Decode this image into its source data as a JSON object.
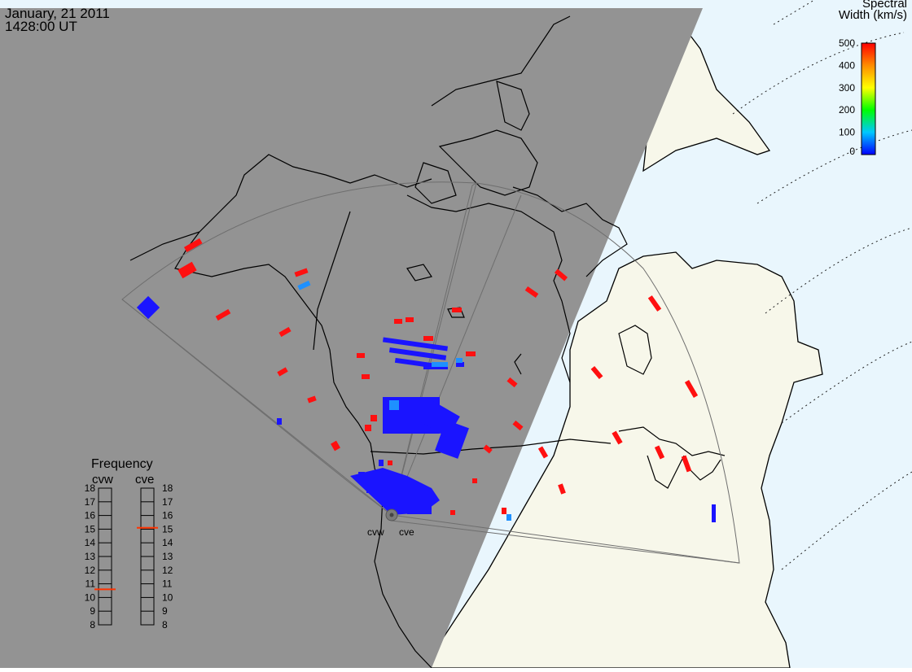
{
  "date": "January, 21 2011",
  "time": "1428:00 UT",
  "colorbar": {
    "title_line1": "Spectral",
    "title_line2": "Width (km/s)",
    "ticks": [
      0,
      100,
      200,
      300,
      400,
      500
    ],
    "stops": [
      "#0000ff",
      "#00c8ff",
      "#00ff00",
      "#ffff00",
      "#ff8c00",
      "#ff0000"
    ]
  },
  "radars": {
    "west": "cvw",
    "east": "cve"
  },
  "frequency": {
    "title": "Frequency",
    "west_label": "cvw",
    "east_label": "cve",
    "scale": [
      18,
      17,
      16,
      15,
      14,
      13,
      12,
      11,
      10,
      9,
      8
    ],
    "west_value": 10.6,
    "east_value": 15.1,
    "marker_color": "#ff3300"
  },
  "colors": {
    "night": "#939393",
    "land": "#f7f7ea",
    "ocean": "#e9f6fd",
    "low_width": "#1a14ff",
    "mid_width": "#1e90ff",
    "high_width": "#ff1010"
  }
}
